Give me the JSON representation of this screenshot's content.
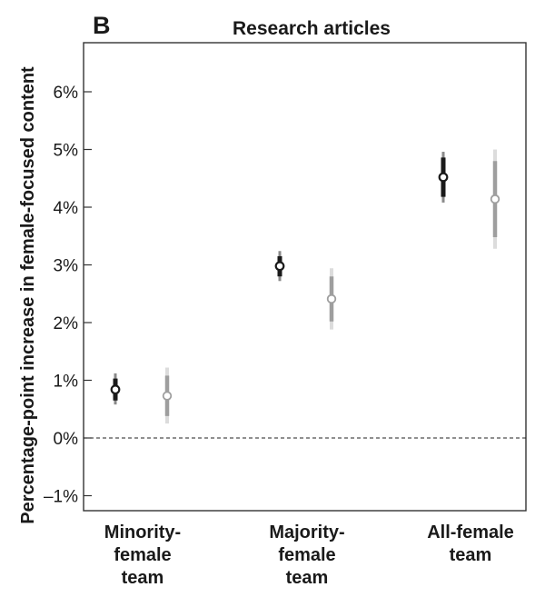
{
  "panel_letter": "B",
  "chart_data": {
    "type": "scatter",
    "title": "Research articles",
    "xlabel": "",
    "ylabel": "Percentage-point increase in female-focused content",
    "y_unit": "%",
    "ylim": [
      -1.5,
      6.8
    ],
    "yticks": [
      -1,
      0,
      1,
      2,
      3,
      4,
      5,
      6
    ],
    "ytick_labels": [
      "–1%",
      "0%",
      "1%",
      "2%",
      "3%",
      "4%",
      "5%",
      "6%"
    ],
    "categories": [
      [
        "Minority-",
        "female",
        "team"
      ],
      [
        "Majority-",
        "female",
        "team"
      ],
      [
        "All-female",
        "team"
      ]
    ],
    "reference_line": {
      "y": 0,
      "style": "dashed"
    },
    "grid": false,
    "series": [
      {
        "color": "#1a1a1a",
        "light_color": "#8a8a8a",
        "points": [
          {
            "value": 0.84,
            "inner": [
              0.65,
              1.03
            ],
            "outer": [
              0.58,
              1.12
            ]
          },
          {
            "value": 2.98,
            "inner": [
              2.8,
              3.15
            ],
            "outer": [
              2.72,
              3.24
            ]
          },
          {
            "value": 4.52,
            "inner": [
              4.18,
              4.86
            ],
            "outer": [
              4.08,
              4.96
            ]
          }
        ]
      },
      {
        "color": "#9e9e9e",
        "light_color": "#dcdcdc",
        "points": [
          {
            "value": 0.73,
            "inner": [
              0.38,
              1.08
            ],
            "outer": [
              0.25,
              1.22
            ]
          },
          {
            "value": 2.41,
            "inner": [
              2.02,
              2.8
            ],
            "outer": [
              1.88,
              2.94
            ]
          },
          {
            "value": 4.14,
            "inner": [
              3.48,
              4.8
            ],
            "outer": [
              3.28,
              5.0
            ]
          }
        ]
      }
    ]
  }
}
